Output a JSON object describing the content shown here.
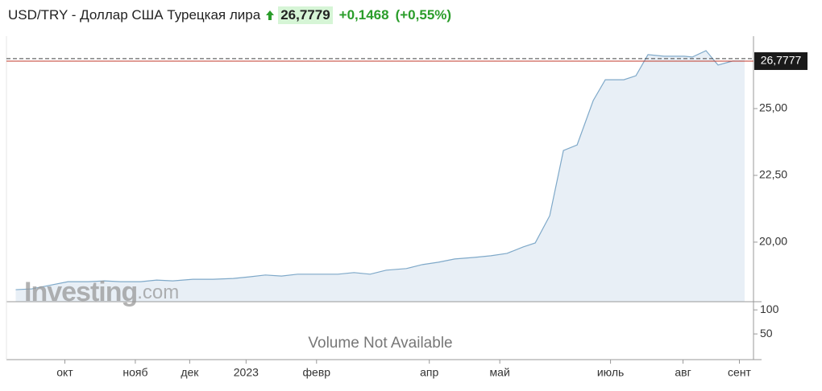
{
  "header": {
    "title": "USD/TRY - Доллар США Турецкая лира",
    "price": "26,7779",
    "change": "+0,1468",
    "change_percent": "(+0,55%)"
  },
  "chart_data": {
    "type": "area",
    "watermark": "Investing",
    "watermark_suffix": ".com",
    "x": [
      -24.4,
      -16.4,
      -8.4,
      1.6,
      11.6,
      19.6,
      27.6,
      37.6,
      45.6,
      53.6,
      63.6,
      73.6,
      83.6,
      91.6,
      99.6,
      107.6,
      115.6,
      125.6,
      135.6,
      143.6,
      151.6,
      159.6,
      169.6,
      177.6,
      185.6,
      193.6,
      203.6,
      211.6,
      219.6,
      227.6,
      233.6,
      240.8,
      247.6,
      254.4,
      262.4,
      268.4,
      277.6,
      283.6,
      289.6,
      297.6,
      307.6,
      311.6,
      318.4,
      324.4,
      331.6,
      337.6
    ],
    "series": [
      {
        "name": "USD/TRY",
        "color": "#7fa9c9",
        "values": [
          18.22,
          18.25,
          18.37,
          18.52,
          18.52,
          18.55,
          18.52,
          18.52,
          18.58,
          18.55,
          18.61,
          18.61,
          18.64,
          18.7,
          18.77,
          18.73,
          18.8,
          18.8,
          18.8,
          18.86,
          18.8,
          18.95,
          19.01,
          19.16,
          19.25,
          19.37,
          19.43,
          19.49,
          19.58,
          19.82,
          19.97,
          20.99,
          23.43,
          23.64,
          25.3,
          26.08,
          26.08,
          26.23,
          27.02,
          26.96,
          26.96,
          26.93,
          27.17,
          26.63,
          26.78,
          26.78
        ]
      }
    ],
    "xlim": [
      -29,
      342
    ],
    "xticks": [
      {
        "value": 0,
        "label": "окт"
      },
      {
        "value": 35,
        "label": "нояб"
      },
      {
        "value": 62,
        "label": "дек"
      },
      {
        "value": 90,
        "label": "2023"
      },
      {
        "value": 125,
        "label": "февр"
      },
      {
        "value": 181,
        "label": "апр"
      },
      {
        "value": 216,
        "label": "май"
      },
      {
        "value": 271,
        "label": "июль"
      },
      {
        "value": 307,
        "label": "авг"
      },
      {
        "value": 335,
        "label": "сент"
      }
    ],
    "ylim": [
      17.77,
      27.71
    ],
    "yticks": [
      {
        "value": 25,
        "label": "25,00"
      },
      {
        "value": 22.5,
        "label": "22,50"
      },
      {
        "value": 20,
        "label": "20,00"
      }
    ],
    "last_price": {
      "value": 26.7777,
      "label": "26,7777",
      "color": "#c0392b"
    },
    "reference_line": 26.87,
    "volume_panel": {
      "ylim": [
        0,
        117
      ],
      "yticks": [
        100,
        50
      ],
      "message": "Volume Not Available"
    }
  }
}
